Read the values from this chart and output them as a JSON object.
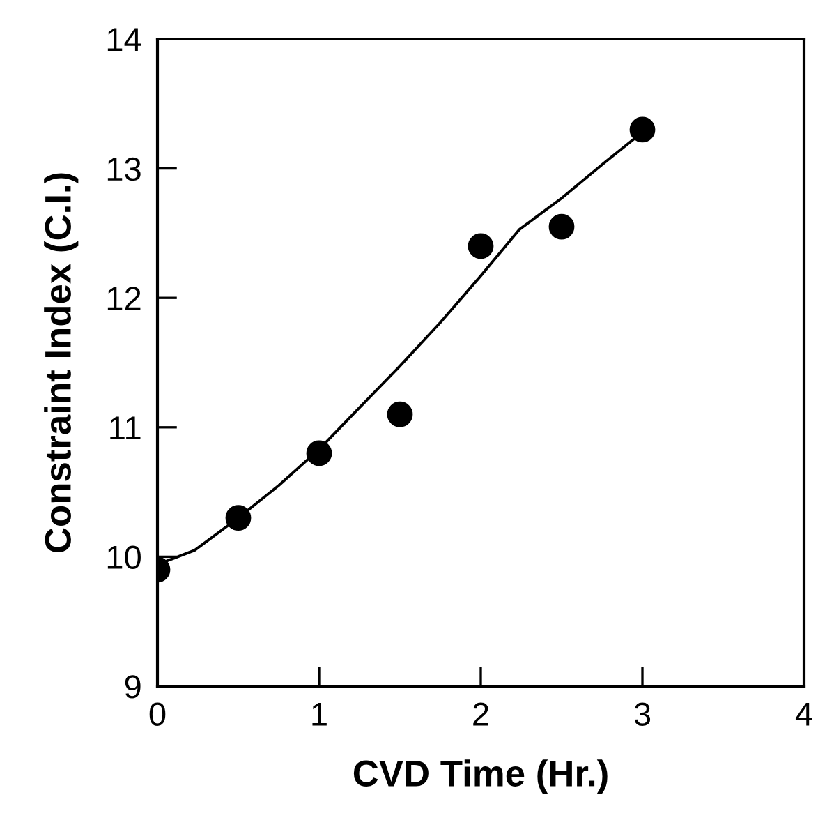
{
  "chart_data": {
    "type": "scatter",
    "xlabel": "CVD Time (Hr.)",
    "ylabel": "Constraint Index (C.I.)",
    "xlim": [
      0,
      4
    ],
    "ylim": [
      9,
      14
    ],
    "xticks": [
      0,
      1,
      2,
      3,
      4
    ],
    "yticks": [
      9,
      10,
      11,
      12,
      13,
      14
    ],
    "grid": false,
    "legend": false,
    "series": [
      {
        "color": "#000000",
        "marker": "circle",
        "x": [
          0,
          0.5,
          1,
          1.5,
          2,
          2.5,
          3
        ],
        "values": [
          9.9,
          10.3,
          10.8,
          11.1,
          12.4,
          12.55,
          13.3
        ]
      },
      {
        "type": "line",
        "color": "#000000",
        "marker": "none",
        "line_style": "solid",
        "x": [
          0,
          0.23,
          0.5,
          0.75,
          1,
          1.24,
          1.49,
          1.75,
          2,
          2.24,
          2.5,
          2.76,
          2.94,
          3
        ],
        "values": [
          9.94,
          10.05,
          10.3,
          10.55,
          10.83,
          11.14,
          11.46,
          11.81,
          12.17,
          12.53,
          12.77,
          13.04,
          13.22,
          13.28
        ]
      }
    ]
  }
}
